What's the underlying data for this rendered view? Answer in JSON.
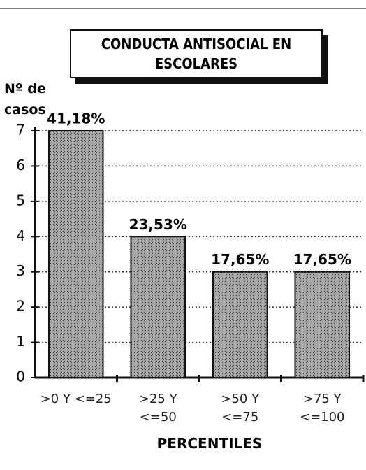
{
  "chart_data": {
    "type": "bar",
    "title": "CONDUCTA ANTISOCIAL EN ESCOLARES",
    "y_label": "Nº de casos",
    "x_label": "PERCENTILES",
    "categories": [
      ">0 Y <=25",
      ">25 Y <=50",
      ">50 Y <=75",
      ">75 Y <=100"
    ],
    "values": [
      7,
      4,
      3,
      3
    ],
    "value_labels": [
      "41,18%",
      "23,53%",
      "17,65%",
      "17,65%"
    ],
    "color": "#a8a8a8",
    "ylim": [
      0,
      7
    ],
    "yticks": [
      0,
      1,
      2,
      3,
      4,
      5,
      6,
      7
    ],
    "grid": true
  }
}
